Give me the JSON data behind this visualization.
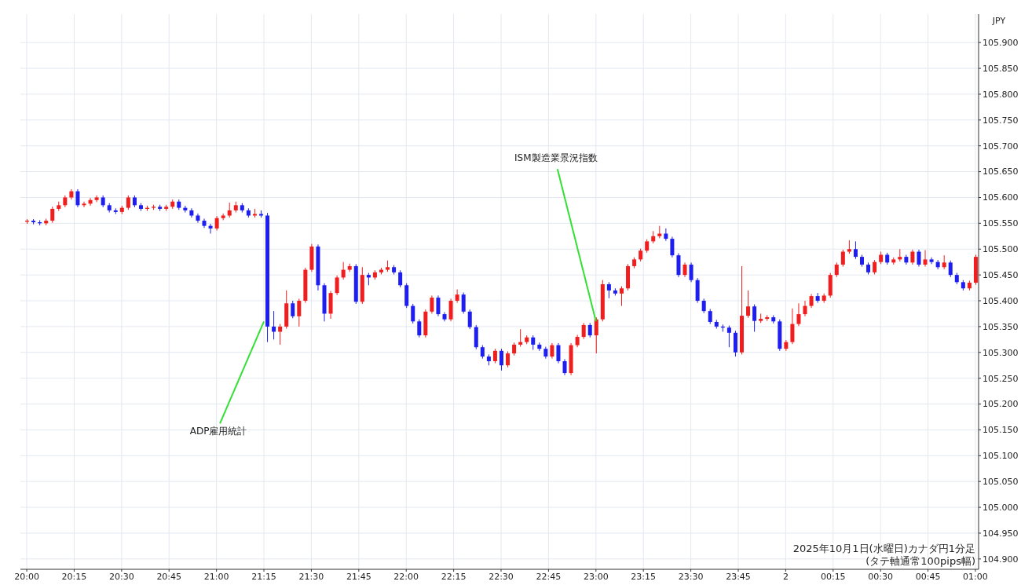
{
  "chart_data": {
    "type": "candlestick",
    "ylabel": "JPY",
    "annotations": [
      {
        "text": "ADP雇用統計",
        "x": "2025-10-01T21:15",
        "y": 105.36
      },
      {
        "text": "ISM製造業景況指数",
        "x": "2025-10-01T23:00",
        "y": 105.36
      },
      "2025年10月1日(水曜日)カナダ円1分足",
      "(タテ軸通常100pips幅)"
    ],
    "colors": [
      "#f01e1e",
      "#1e1ef0",
      "#1e1ef0",
      "#f01e1e",
      "#f01e1e",
      "#f01e1e",
      "#f01e1e",
      "#f01e1e",
      "#1e1ef0",
      "#f01e1e",
      "#f01e1e",
      "#f01e1e",
      "#1e1ef0",
      "#1e1ef0",
      "#1e1ef0",
      "#f01e1e",
      "#f01e1e",
      "#1e1ef0",
      "#1e1ef0",
      "#f01e1e",
      "#f01e1e",
      "#1e1ef0",
      "#f01e1e",
      "#f01e1e",
      "#1e1ef0",
      "#1e1ef0",
      "#1e1ef0",
      "#1e1ef0",
      "#1e1ef0",
      "#1e1ef0",
      "#f01e1e",
      "#f01e1e",
      "#f01e1e",
      "#f01e1e",
      "#1e1ef0",
      "#1e1ef0",
      "#f01e1e",
      "#1e1ef0",
      "#1e1ef0",
      "#1e1ef0",
      "#f01e1e",
      "#f01e1e",
      "#1e1ef0",
      "#f01e1e",
      "#f01e1e",
      "#f01e1e",
      "#1e1ef0",
      "#1e1ef0",
      "#f01e1e",
      "#f01e1e",
      "#f01e1e",
      "#f01e1e",
      "#1e1ef0",
      "#f01e1e",
      "#1e1ef0",
      "#f01e1e",
      "#f01e1e",
      "#f01e1e",
      "#1e1ef0",
      "#1e1ef0",
      "#1e1ef0",
      "#1e1ef0",
      "#1e1ef0",
      "#f01e1e",
      "#f01e1e",
      "#1e1ef0",
      "#1e1ef0",
      "#f01e1e",
      "#f01e1e",
      "#1e1ef0",
      "#1e1ef0",
      "#1e1ef0",
      "#1e1ef0",
      "#1e1ef0",
      "#f01e1e",
      "#1e1ef0",
      "#f01e1e",
      "#f01e1e",
      "#f01e1e",
      "#f01e1e",
      "#1e1ef0",
      "#1e1ef0",
      "#1e1ef0",
      "#f01e1e",
      "#1e1ef0",
      "#1e1ef0",
      "#f01e1e",
      "#f01e1e",
      "#f01e1e",
      "#1e1ef0",
      "#f01e1e",
      "#f01e1e",
      "#1e1ef0",
      "#1e1ef0",
      "#f01e1e",
      "#f01e1e",
      "#f01e1e",
      "#f01e1e",
      "#f01e1e",
      "#f01e1e",
      "#f01e1e",
      "#1e1ef0",
      "#1e1ef0",
      "#1e1ef0",
      "#f01e1e",
      "#1e1ef0",
      "#1e1ef0",
      "#1e1ef0",
      "#1e1ef0",
      "#1e1ef0",
      "#1e1ef0",
      "#1e1ef0",
      "#1e1ef0",
      "#f01e1e",
      "#f01e1e",
      "#1e1ef0",
      "#f01e1e",
      "#f01e1e",
      "#1e1ef0",
      "#1e1ef0",
      "#f01e1e",
      "#f01e1e",
      "#f01e1e",
      "#f01e1e",
      "#f01e1e",
      "#1e1ef0",
      "#f01e1e",
      "#f01e1e",
      "#f01e1e",
      "#f01e1e",
      "#f01e1e",
      "#1e1ef0",
      "#1e1ef0",
      "#1e1ef0",
      "#f01e1e",
      "#f01e1e",
      "#1e1ef0",
      "#f01e1e",
      "#f01e1e",
      "#1e1ef0",
      "#f01e1e",
      "#1e1ef0",
      "#f01e1e",
      "#1e1ef0",
      "#1e1ef0",
      "#f01e1e",
      "#1e1ef0",
      "#1e1ef0",
      "#1e1ef0",
      "#f01e1e",
      "#f01e1e"
    ],
    "grid": true,
    "xlim": [
      "2025-10-01T19:58",
      "2025-10-02T01:01"
    ],
    "xticks": [
      {
        "value": "2025-10-01T20:00",
        "label": "20:00"
      },
      {
        "value": "2025-10-01T20:15",
        "label": "20:15"
      },
      {
        "value": "2025-10-01T20:30",
        "label": "20:30"
      },
      {
        "value": "2025-10-01T20:45",
        "label": "20:45"
      },
      {
        "value": "2025-10-01T21:00",
        "label": "21:00"
      },
      {
        "value": "2025-10-01T21:15",
        "label": "21:15"
      },
      {
        "value": "2025-10-01T21:30",
        "label": "21:30"
      },
      {
        "value": "2025-10-01T21:45",
        "label": "21:45"
      },
      {
        "value": "2025-10-01T22:00",
        "label": "22:00"
      },
      {
        "value": "2025-10-01T22:15",
        "label": "22:15"
      },
      {
        "value": "2025-10-01T22:30",
        "label": "22:30"
      },
      {
        "value": "2025-10-01T22:45",
        "label": "22:45"
      },
      {
        "value": "2025-10-01T23:00",
        "label": "23:00"
      },
      {
        "value": "2025-10-01T23:15",
        "label": "23:15"
      },
      {
        "value": "2025-10-01T23:30",
        "label": "23:30"
      },
      {
        "value": "2025-10-01T23:45",
        "label": "23:45"
      },
      {
        "value": "2025-10-02T00:00",
        "label": "2"
      },
      {
        "value": "2025-10-02T00:15",
        "label": "00:15"
      },
      {
        "value": "2025-10-02T00:30",
        "label": "00:30"
      },
      {
        "value": "2025-10-02T00:45",
        "label": "00:45"
      },
      {
        "value": "2025-10-02T01:00",
        "label": "01:00"
      }
    ],
    "ylim": [
      104.88,
      105.955
    ],
    "yticks": [
      {
        "value": 104.9,
        "label": "104.900"
      },
      {
        "value": 104.95,
        "label": "104.950"
      },
      {
        "value": 105.0,
        "label": "105.000"
      },
      {
        "value": 105.05,
        "label": "105.050"
      },
      {
        "value": 105.1,
        "label": "105.100"
      },
      {
        "value": 105.15,
        "label": "105.150"
      },
      {
        "value": 105.2,
        "label": "105.200"
      },
      {
        "value": 105.25,
        "label": "105.250"
      },
      {
        "value": 105.3,
        "label": "105.300"
      },
      {
        "value": 105.35,
        "label": "105.350"
      },
      {
        "value": 105.4,
        "label": "105.400"
      },
      {
        "value": 105.45,
        "label": "105.450"
      },
      {
        "value": 105.5,
        "label": "105.500"
      },
      {
        "value": 105.55,
        "label": "105.550"
      },
      {
        "value": 105.6,
        "label": "105.600"
      },
      {
        "value": 105.65,
        "label": "105.650"
      },
      {
        "value": 105.7,
        "label": "105.700"
      },
      {
        "value": 105.75,
        "label": "105.750"
      },
      {
        "value": 105.8,
        "label": "105.800"
      },
      {
        "value": 105.85,
        "label": "105.850"
      },
      {
        "value": 105.9,
        "label": "105.900"
      }
    ],
    "x": [
      "2025-10-01T20:00",
      "2025-10-01T20:02",
      "2025-10-01T20:04",
      "2025-10-01T20:06",
      "2025-10-01T20:08",
      "2025-10-01T20:10",
      "2025-10-01T20:12",
      "2025-10-01T20:14",
      "2025-10-01T20:16",
      "2025-10-01T20:18",
      "2025-10-01T20:20",
      "2025-10-01T20:22",
      "2025-10-01T20:24",
      "2025-10-01T20:26",
      "2025-10-01T20:28",
      "2025-10-01T20:30",
      "2025-10-01T20:32",
      "2025-10-01T20:34",
      "2025-10-01T20:36",
      "2025-10-01T20:38",
      "2025-10-01T20:40",
      "2025-10-01T20:42",
      "2025-10-01T20:44",
      "2025-10-01T20:46",
      "2025-10-01T20:48",
      "2025-10-01T20:50",
      "2025-10-01T20:52",
      "2025-10-01T20:54",
      "2025-10-01T20:56",
      "2025-10-01T20:58",
      "2025-10-01T21:00",
      "2025-10-01T21:02",
      "2025-10-01T21:04",
      "2025-10-01T21:06",
      "2025-10-01T21:08",
      "2025-10-01T21:10",
      "2025-10-01T21:12",
      "2025-10-01T21:14",
      "2025-10-01T21:16",
      "2025-10-01T21:18",
      "2025-10-01T21:20",
      "2025-10-01T21:22",
      "2025-10-01T21:24",
      "2025-10-01T21:26",
      "2025-10-01T21:28",
      "2025-10-01T21:30",
      "2025-10-01T21:32",
      "2025-10-01T21:34",
      "2025-10-01T21:36",
      "2025-10-01T21:38",
      "2025-10-01T21:40",
      "2025-10-01T21:42",
      "2025-10-01T21:44",
      "2025-10-01T21:46",
      "2025-10-01T21:48",
      "2025-10-01T21:50",
      "2025-10-01T21:52",
      "2025-10-01T21:54",
      "2025-10-01T21:56",
      "2025-10-01T21:58",
      "2025-10-01T22:00",
      "2025-10-01T22:02",
      "2025-10-01T22:04",
      "2025-10-01T22:06",
      "2025-10-01T22:08",
      "2025-10-01T22:10",
      "2025-10-01T22:12",
      "2025-10-01T22:14",
      "2025-10-01T22:16",
      "2025-10-01T22:18",
      "2025-10-01T22:20",
      "2025-10-01T22:22",
      "2025-10-01T22:24",
      "2025-10-01T22:26",
      "2025-10-01T22:28",
      "2025-10-01T22:30",
      "2025-10-01T22:32",
      "2025-10-01T22:34",
      "2025-10-01T22:36",
      "2025-10-01T22:38",
      "2025-10-01T22:40",
      "2025-10-01T22:42",
      "2025-10-01T22:44",
      "2025-10-01T22:46",
      "2025-10-01T22:48",
      "2025-10-01T22:50",
      "2025-10-01T22:52",
      "2025-10-01T22:54",
      "2025-10-01T22:56",
      "2025-10-01T22:58",
      "2025-10-01T23:00",
      "2025-10-01T23:02",
      "2025-10-01T23:04",
      "2025-10-01T23:06",
      "2025-10-01T23:08",
      "2025-10-01T23:10",
      "2025-10-01T23:12",
      "2025-10-01T23:14",
      "2025-10-01T23:16",
      "2025-10-01T23:18",
      "2025-10-01T23:20",
      "2025-10-01T23:22",
      "2025-10-01T23:24",
      "2025-10-01T23:26",
      "2025-10-01T23:28",
      "2025-10-01T23:30",
      "2025-10-01T23:32",
      "2025-10-01T23:34",
      "2025-10-01T23:36",
      "2025-10-01T23:38",
      "2025-10-01T23:40",
      "2025-10-01T23:42",
      "2025-10-01T23:44",
      "2025-10-01T23:46",
      "2025-10-01T23:48",
      "2025-10-01T23:50",
      "2025-10-01T23:52",
      "2025-10-01T23:54",
      "2025-10-01T23:56",
      "2025-10-01T23:58",
      "2025-10-02T00:00",
      "2025-10-02T00:02",
      "2025-10-02T00:04",
      "2025-10-02T00:06",
      "2025-10-02T00:08",
      "2025-10-02T00:10",
      "2025-10-02T00:12",
      "2025-10-02T00:14",
      "2025-10-02T00:16",
      "2025-10-02T00:18",
      "2025-10-02T00:20",
      "2025-10-02T00:22",
      "2025-10-02T00:24",
      "2025-10-02T00:26",
      "2025-10-02T00:28",
      "2025-10-02T00:30",
      "2025-10-02T00:32",
      "2025-10-02T00:34",
      "2025-10-02T00:36",
      "2025-10-02T00:38",
      "2025-10-02T00:40",
      "2025-10-02T00:42",
      "2025-10-02T00:44",
      "2025-10-02T00:46",
      "2025-10-02T00:48",
      "2025-10-02T00:50",
      "2025-10-02T00:52",
      "2025-10-02T00:54",
      "2025-10-02T00:56",
      "2025-10-02T00:58",
      "2025-10-02T01:00"
    ],
    "ohlc": [
      [
        105.553,
        105.558,
        105.549,
        105.555
      ],
      [
        105.555,
        105.558,
        105.548,
        105.552
      ],
      [
        105.552,
        105.556,
        105.546,
        105.55
      ],
      [
        105.55,
        105.559,
        105.546,
        105.555
      ],
      [
        105.555,
        105.582,
        105.551,
        105.578
      ],
      [
        105.578,
        105.592,
        105.574,
        105.585
      ],
      [
        105.585,
        105.604,
        105.581,
        105.6
      ],
      [
        105.6,
        105.616,
        105.596,
        105.612
      ],
      [
        105.612,
        105.616,
        105.581,
        105.585
      ],
      [
        105.585,
        105.592,
        105.581,
        105.588
      ],
      [
        105.588,
        105.599,
        105.584,
        105.595
      ],
      [
        105.595,
        105.604,
        105.591,
        105.6
      ],
      [
        105.6,
        105.604,
        105.581,
        105.585
      ],
      [
        105.585,
        105.589,
        105.571,
        105.575
      ],
      [
        105.575,
        105.579,
        105.568,
        105.572
      ],
      [
        105.572,
        105.584,
        105.568,
        105.58
      ],
      [
        105.58,
        105.604,
        105.576,
        105.6
      ],
      [
        105.6,
        105.604,
        105.581,
        105.585
      ],
      [
        105.585,
        105.589,
        105.574,
        105.578
      ],
      [
        105.578,
        105.584,
        105.574,
        105.58
      ],
      [
        105.58,
        105.586,
        105.576,
        105.582
      ],
      [
        105.582,
        105.586,
        105.574,
        105.578
      ],
      [
        105.578,
        105.586,
        105.574,
        105.582
      ],
      [
        105.582,
        105.596,
        105.578,
        105.592
      ],
      [
        105.592,
        105.596,
        105.576,
        105.58
      ],
      [
        105.58,
        105.584,
        105.571,
        105.575
      ],
      [
        105.575,
        105.579,
        105.561,
        105.565
      ],
      [
        105.565,
        105.569,
        105.551,
        105.555
      ],
      [
        105.555,
        105.559,
        105.541,
        105.545
      ],
      [
        105.545,
        105.549,
        105.53,
        105.54
      ],
      [
        105.54,
        105.564,
        105.536,
        105.56
      ],
      [
        105.56,
        105.569,
        105.556,
        105.565
      ],
      [
        105.565,
        105.59,
        105.561,
        105.575
      ],
      [
        105.575,
        105.592,
        105.571,
        105.585
      ],
      [
        105.585,
        105.589,
        105.571,
        105.575
      ],
      [
        105.575,
        105.579,
        105.561,
        105.565
      ],
      [
        105.565,
        105.578,
        105.561,
        105.568
      ],
      [
        105.568,
        105.575,
        105.561,
        105.565
      ],
      [
        105.565,
        105.57,
        105.32,
        105.35
      ],
      [
        105.35,
        105.38,
        105.325,
        105.34
      ],
      [
        105.34,
        105.355,
        105.315,
        105.35
      ],
      [
        105.35,
        105.42,
        105.346,
        105.395
      ],
      [
        105.395,
        105.4,
        105.366,
        105.37
      ],
      [
        105.37,
        105.404,
        105.35,
        105.4
      ],
      [
        105.4,
        105.464,
        105.396,
        105.46
      ],
      [
        105.46,
        105.51,
        105.456,
        105.505
      ],
      [
        105.505,
        105.509,
        105.42,
        105.43
      ],
      [
        105.43,
        105.434,
        105.36,
        105.375
      ],
      [
        105.375,
        105.419,
        105.365,
        105.415
      ],
      [
        105.415,
        105.449,
        105.411,
        105.445
      ],
      [
        105.445,
        105.475,
        105.441,
        105.46
      ],
      [
        105.46,
        105.472,
        105.456,
        105.467
      ],
      [
        105.467,
        105.471,
        105.394,
        105.398
      ],
      [
        105.398,
        105.465,
        105.394,
        105.45
      ],
      [
        105.45,
        105.454,
        105.43,
        105.445
      ],
      [
        105.445,
        105.459,
        105.441,
        105.455
      ],
      [
        105.455,
        105.464,
        105.451,
        105.46
      ],
      [
        105.46,
        105.478,
        105.456,
        105.465
      ],
      [
        105.465,
        105.469,
        105.451,
        105.455
      ],
      [
        105.455,
        105.459,
        105.426,
        105.43
      ],
      [
        105.43,
        105.434,
        105.386,
        105.39
      ],
      [
        105.39,
        105.394,
        105.356,
        105.36
      ],
      [
        105.36,
        105.364,
        105.329,
        105.333
      ],
      [
        105.333,
        105.383,
        105.329,
        105.379
      ],
      [
        105.379,
        105.41,
        105.375,
        105.406
      ],
      [
        105.406,
        105.41,
        105.37,
        105.374
      ],
      [
        105.374,
        105.378,
        105.36,
        105.364
      ],
      [
        105.364,
        105.404,
        105.36,
        105.4
      ],
      [
        105.4,
        105.422,
        105.396,
        105.412
      ],
      [
        105.412,
        105.416,
        105.375,
        105.379
      ],
      [
        105.379,
        105.383,
        105.345,
        105.349
      ],
      [
        105.349,
        105.353,
        105.306,
        105.31
      ],
      [
        105.31,
        105.314,
        105.288,
        105.292
      ],
      [
        105.292,
        105.296,
        105.275,
        105.283
      ],
      [
        105.283,
        105.307,
        105.279,
        105.303
      ],
      [
        105.303,
        105.307,
        105.265,
        105.275
      ],
      [
        105.275,
        105.302,
        105.271,
        105.298
      ],
      [
        105.298,
        105.319,
        105.294,
        105.315
      ],
      [
        105.315,
        105.345,
        105.311,
        105.32
      ],
      [
        105.32,
        105.333,
        105.316,
        105.329
      ],
      [
        105.329,
        105.333,
        105.305,
        105.315
      ],
      [
        105.315,
        105.319,
        105.303,
        105.307
      ],
      [
        105.307,
        105.311,
        105.288,
        105.292
      ],
      [
        105.292,
        105.318,
        105.288,
        105.314
      ],
      [
        105.314,
        105.318,
        105.279,
        105.283
      ],
      [
        105.283,
        105.287,
        105.256,
        105.26
      ],
      [
        105.26,
        105.318,
        105.256,
        105.314
      ],
      [
        105.314,
        105.334,
        105.31,
        105.33
      ],
      [
        105.33,
        105.357,
        105.326,
        105.353
      ],
      [
        105.353,
        105.357,
        105.329,
        105.333
      ],
      [
        105.333,
        105.368,
        105.298,
        105.364
      ],
      [
        105.364,
        105.44,
        105.36,
        105.432
      ],
      [
        105.432,
        105.436,
        105.405,
        105.42
      ],
      [
        105.42,
        105.424,
        105.41,
        105.414
      ],
      [
        105.414,
        105.428,
        105.39,
        105.424
      ],
      [
        105.424,
        105.471,
        105.42,
        105.467
      ],
      [
        105.467,
        105.484,
        105.463,
        105.48
      ],
      [
        105.48,
        105.501,
        105.476,
        105.497
      ],
      [
        105.497,
        105.519,
        105.493,
        105.515
      ],
      [
        105.515,
        105.535,
        105.511,
        105.525
      ],
      [
        105.525,
        105.545,
        105.521,
        105.53
      ],
      [
        105.53,
        105.54,
        105.516,
        105.52
      ],
      [
        105.52,
        105.524,
        105.484,
        105.488
      ],
      [
        105.488,
        105.492,
        105.446,
        105.45
      ],
      [
        105.45,
        105.474,
        105.446,
        105.47
      ],
      [
        105.47,
        105.474,
        105.436,
        105.44
      ],
      [
        105.44,
        105.444,
        105.396,
        105.4
      ],
      [
        105.4,
        105.404,
        105.376,
        105.38
      ],
      [
        105.38,
        105.384,
        105.355,
        105.359
      ],
      [
        105.359,
        105.363,
        105.346,
        105.35
      ],
      [
        105.35,
        105.354,
        105.34,
        105.348
      ],
      [
        105.348,
        105.352,
        105.31,
        105.338
      ],
      [
        105.338,
        105.342,
        105.292,
        105.3
      ],
      [
        105.3,
        105.467,
        105.296,
        105.371
      ],
      [
        105.371,
        105.42,
        105.367,
        105.389
      ],
      [
        105.389,
        105.393,
        105.34,
        105.361
      ],
      [
        105.361,
        105.375,
        105.357,
        105.365
      ],
      [
        105.365,
        105.372,
        105.361,
        105.368
      ],
      [
        105.368,
        105.372,
        105.356,
        105.36
      ],
      [
        105.36,
        105.364,
        105.303,
        105.307
      ],
      [
        105.307,
        105.324,
        105.303,
        105.32
      ],
      [
        105.32,
        105.385,
        105.316,
        105.355
      ],
      [
        105.355,
        105.395,
        105.351,
        105.374
      ],
      [
        105.374,
        105.4,
        105.37,
        105.39
      ],
      [
        105.39,
        105.413,
        105.386,
        105.409
      ],
      [
        105.409,
        105.415,
        105.396,
        105.4
      ],
      [
        105.4,
        105.414,
        105.396,
        105.41
      ],
      [
        105.41,
        105.454,
        105.406,
        105.45
      ],
      [
        105.45,
        105.474,
        105.446,
        105.47
      ],
      [
        105.47,
        105.499,
        105.466,
        105.495
      ],
      [
        105.495,
        105.517,
        105.491,
        105.5
      ],
      [
        105.5,
        105.515,
        105.481,
        105.485
      ],
      [
        105.485,
        105.489,
        105.466,
        105.47
      ],
      [
        105.47,
        105.474,
        105.451,
        105.455
      ],
      [
        105.455,
        105.479,
        105.451,
        105.475
      ],
      [
        105.475,
        105.495,
        105.471,
        105.489
      ],
      [
        105.489,
        105.493,
        105.47,
        105.474
      ],
      [
        105.474,
        105.484,
        105.47,
        105.48
      ],
      [
        105.48,
        105.5,
        105.476,
        105.485
      ],
      [
        105.485,
        105.489,
        105.47,
        105.474
      ],
      [
        105.474,
        105.499,
        105.47,
        105.495
      ],
      [
        105.495,
        105.499,
        105.466,
        105.47
      ],
      [
        105.47,
        105.498,
        105.466,
        105.48
      ],
      [
        105.48,
        105.484,
        105.471,
        105.475
      ],
      [
        105.475,
        105.479,
        105.461,
        105.465
      ],
      [
        105.465,
        105.488,
        105.461,
        105.474
      ],
      [
        105.474,
        105.478,
        105.446,
        105.45
      ],
      [
        105.45,
        105.454,
        105.432,
        105.436
      ],
      [
        105.436,
        105.44,
        105.42,
        105.424
      ],
      [
        105.424,
        105.439,
        105.42,
        105.435
      ],
      [
        105.435,
        105.489,
        105.431,
        105.485
      ]
    ]
  }
}
